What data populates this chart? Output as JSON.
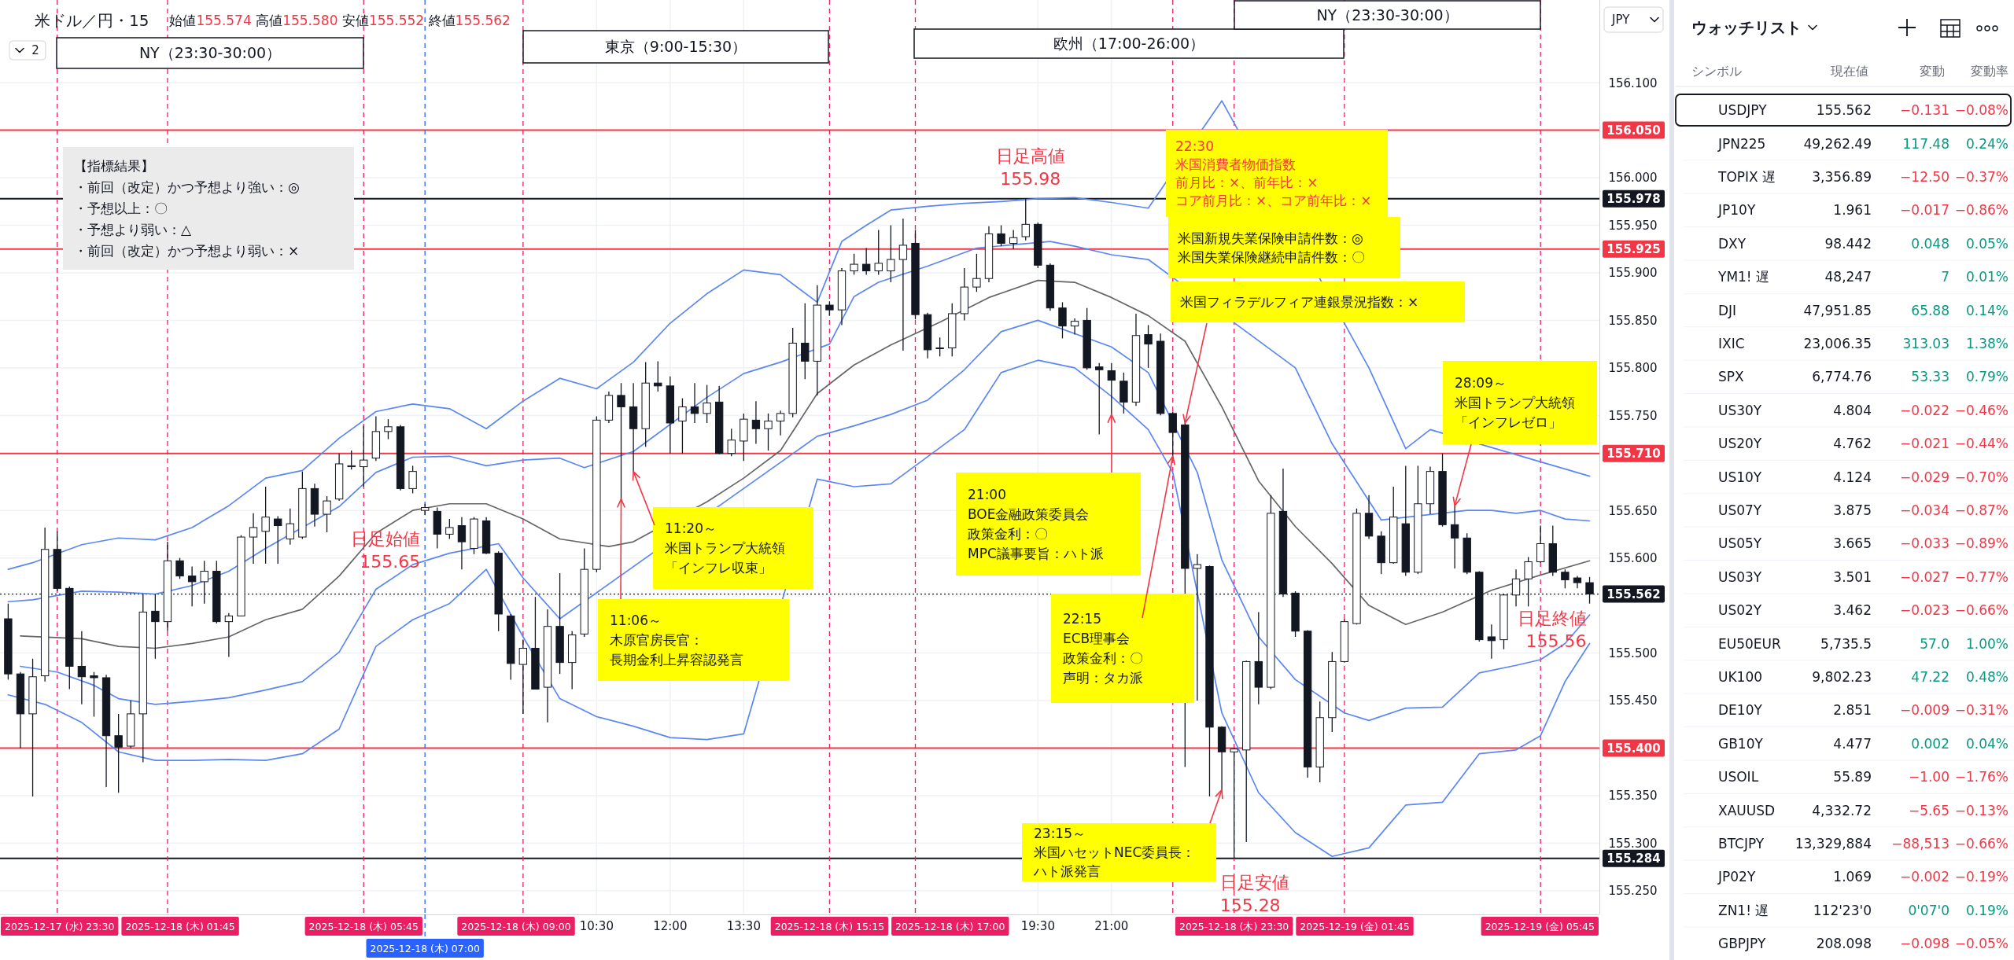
{
  "chart_data": [
    {
      "type": "candlestick",
      "title": "米ドル／円・15",
      "subtitle": "始値155.574 高値155.580 安値155.552 終値155.562",
      "ylabel": "JPY",
      "x": [
        "2025-12-17T22:30",
        "2025-12-17T22:45",
        "2025-12-17T23:00",
        "2025-12-17T23:15",
        "2025-12-17T23:30",
        "2025-12-17T23:45",
        "2025-12-18T00:00",
        "2025-12-18T00:15",
        "2025-12-18T00:30",
        "2025-12-18T00:45",
        "2025-12-18T01:00",
        "2025-12-18T01:15",
        "2025-12-18T01:30",
        "2025-12-18T01:45",
        "2025-12-18T02:00",
        "2025-12-18T02:15",
        "2025-12-18T02:30",
        "2025-12-18T02:45",
        "2025-12-18T03:00",
        "2025-12-18T03:15",
        "2025-12-18T03:30",
        "2025-12-18T03:45",
        "2025-12-18T04:00",
        "2025-12-18T04:15",
        "2025-12-18T04:30",
        "2025-12-18T04:45",
        "2025-12-18T05:00",
        "2025-12-18T05:15",
        "2025-12-18T05:30",
        "2025-12-18T05:45",
        "2025-12-18T06:00",
        "2025-12-18T06:15",
        "2025-12-18T06:30",
        "2025-12-18T06:45",
        "2025-12-18T07:00",
        "2025-12-18T07:15",
        "2025-12-18T07:30",
        "2025-12-18T07:45",
        "2025-12-18T08:00",
        "2025-12-18T08:15",
        "2025-12-18T08:30",
        "2025-12-18T08:45",
        "2025-12-18T09:00",
        "2025-12-18T09:15",
        "2025-12-18T09:30",
        "2025-12-18T09:45",
        "2025-12-18T10:00",
        "2025-12-18T10:15",
        "2025-12-18T10:30",
        "2025-12-18T10:45",
        "2025-12-18T11:00",
        "2025-12-18T11:15",
        "2025-12-18T11:30",
        "2025-12-18T11:45",
        "2025-12-18T12:00",
        "2025-12-18T12:15",
        "2025-12-18T12:30",
        "2025-12-18T12:45",
        "2025-12-18T13:00",
        "2025-12-18T13:15",
        "2025-12-18T13:30",
        "2025-12-18T13:45",
        "2025-12-18T14:00",
        "2025-12-18T14:15",
        "2025-12-18T14:30",
        "2025-12-18T14:45",
        "2025-12-18T15:00",
        "2025-12-18T15:15",
        "2025-12-18T15:30",
        "2025-12-18T15:45",
        "2025-12-18T16:00",
        "2025-12-18T16:15",
        "2025-12-18T16:30",
        "2025-12-18T16:45",
        "2025-12-18T17:00",
        "2025-12-18T17:15",
        "2025-12-18T17:30",
        "2025-12-18T17:45",
        "2025-12-18T18:00",
        "2025-12-18T18:15",
        "2025-12-18T18:30",
        "2025-12-18T18:45",
        "2025-12-18T19:00",
        "2025-12-18T19:15",
        "2025-12-18T19:30",
        "2025-12-18T19:45",
        "2025-12-18T20:00",
        "2025-12-18T20:15",
        "2025-12-18T20:30",
        "2025-12-18T20:45",
        "2025-12-18T21:00",
        "2025-12-18T21:15",
        "2025-12-18T21:30",
        "2025-12-18T21:45",
        "2025-12-18T22:00",
        "2025-12-18T22:15",
        "2025-12-18T22:30",
        "2025-12-18T22:45",
        "2025-12-18T23:00",
        "2025-12-18T23:15",
        "2025-12-18T23:30",
        "2025-12-18T23:45",
        "2025-12-19T00:00",
        "2025-12-19T00:15",
        "2025-12-19T00:30",
        "2025-12-19T00:45",
        "2025-12-19T01:00",
        "2025-12-19T01:15",
        "2025-12-19T01:30",
        "2025-12-19T01:45",
        "2025-12-19T02:00",
        "2025-12-19T02:15",
        "2025-12-19T02:30",
        "2025-12-19T02:45",
        "2025-12-19T03:00",
        "2025-12-19T03:15",
        "2025-12-19T03:30",
        "2025-12-19T03:45",
        "2025-12-19T04:00",
        "2025-12-19T04:15",
        "2025-12-19T04:30",
        "2025-12-19T04:45",
        "2025-12-19T05:00",
        "2025-12-19T05:15",
        "2025-12-19T05:30",
        "2025-12-19T05:45",
        "2025-12-19T06:00",
        "2025-12-19T06:15",
        "2025-12-19T06:30",
        "2025-12-19T06:45"
      ],
      "ohlc": [
        [
          155.536,
          155.552,
          155.472,
          155.478
        ],
        [
          155.478,
          155.48,
          155.4,
          155.436
        ],
        [
          155.436,
          155.494,
          155.349,
          155.475
        ],
        [
          155.476,
          155.632,
          155.47,
          155.609
        ],
        [
          155.609,
          155.628,
          155.565,
          155.568
        ],
        [
          155.568,
          155.57,
          155.462,
          155.486
        ],
        [
          155.486,
          155.523,
          155.446,
          155.475
        ],
        [
          155.476,
          155.48,
          155.433,
          155.474
        ],
        [
          155.474,
          155.477,
          155.359,
          155.413
        ],
        [
          155.413,
          155.436,
          155.353,
          155.401
        ],
        [
          155.402,
          155.45,
          155.4,
          155.436
        ],
        [
          155.436,
          155.562,
          155.385,
          155.543
        ],
        [
          155.544,
          155.562,
          155.494,
          155.533
        ],
        [
          155.533,
          155.617,
          155.523,
          155.597
        ],
        [
          155.597,
          155.6,
          155.578,
          155.581
        ],
        [
          155.581,
          155.591,
          155.549,
          155.575
        ],
        [
          155.575,
          155.597,
          155.552,
          155.586
        ],
        [
          155.586,
          155.597,
          155.531,
          155.533
        ],
        [
          155.533,
          155.542,
          155.496,
          155.539
        ],
        [
          155.539,
          155.624,
          155.539,
          155.622
        ],
        [
          155.622,
          155.647,
          155.594,
          155.632
        ],
        [
          155.628,
          155.675,
          155.594,
          155.643
        ],
        [
          155.641,
          155.644,
          155.594,
          155.634
        ],
        [
          155.62,
          155.652,
          155.614,
          155.636
        ],
        [
          155.622,
          155.691,
          155.62,
          155.673
        ],
        [
          155.673,
          155.678,
          155.633,
          155.646
        ],
        [
          155.646,
          155.665,
          155.627,
          155.66
        ],
        [
          155.662,
          155.71,
          155.66,
          155.699
        ],
        [
          155.696,
          155.713,
          155.693,
          155.697
        ],
        [
          155.696,
          155.739,
          155.675,
          155.703
        ],
        [
          155.705,
          155.749,
          155.702,
          155.733
        ],
        [
          155.733,
          155.746,
          155.725,
          155.738
        ],
        [
          155.738,
          155.74,
          155.671,
          155.673
        ],
        [
          155.673,
          155.697,
          155.668,
          155.691
        ],
        [
          155.65,
          155.657,
          155.645,
          155.653
        ],
        [
          155.649,
          155.653,
          155.61,
          155.625
        ],
        [
          155.625,
          155.641,
          155.62,
          155.632
        ],
        [
          155.634,
          155.643,
          155.588,
          155.617
        ],
        [
          155.61,
          155.643,
          155.604,
          155.641
        ],
        [
          155.639,
          155.643,
          155.604,
          155.605
        ],
        [
          155.605,
          155.607,
          155.523,
          155.541
        ],
        [
          155.539,
          155.541,
          155.472,
          155.489
        ],
        [
          155.488,
          155.514,
          155.436,
          155.505
        ],
        [
          155.505,
          155.559,
          155.462,
          155.462
        ],
        [
          155.464,
          155.546,
          155.427,
          155.528
        ],
        [
          155.528,
          155.584,
          155.478,
          155.49
        ],
        [
          155.49,
          155.523,
          155.462,
          155.519
        ],
        [
          155.52,
          155.61,
          155.517,
          155.588
        ],
        [
          155.588,
          155.749,
          155.585,
          155.745
        ],
        [
          155.745,
          155.775,
          155.742,
          155.771
        ],
        [
          155.771,
          155.784,
          155.662,
          155.759
        ],
        [
          155.759,
          155.784,
          155.691,
          155.736
        ],
        [
          155.736,
          155.806,
          155.717,
          155.784
        ],
        [
          155.784,
          155.807,
          155.775,
          155.781
        ],
        [
          155.781,
          155.791,
          155.71,
          155.742
        ],
        [
          155.744,
          155.768,
          155.71,
          155.759
        ],
        [
          155.759,
          155.784,
          155.742,
          155.752
        ],
        [
          155.752,
          155.782,
          155.742,
          155.763
        ],
        [
          155.764,
          155.781,
          155.709,
          155.71
        ],
        [
          155.71,
          155.736,
          155.707,
          155.724
        ],
        [
          155.723,
          155.752,
          155.702,
          155.746
        ],
        [
          155.745,
          155.765,
          155.72,
          155.736
        ],
        [
          155.736,
          155.752,
          155.713,
          155.744
        ],
        [
          155.744,
          155.755,
          155.729,
          155.752
        ],
        [
          155.752,
          155.842,
          155.748,
          155.826
        ],
        [
          155.826,
          155.868,
          155.788,
          155.807
        ],
        [
          155.807,
          155.887,
          155.771,
          155.866
        ],
        [
          155.866,
          155.87,
          155.855,
          155.861
        ],
        [
          155.861,
          155.905,
          155.845,
          155.902
        ],
        [
          155.902,
          155.92,
          155.898,
          155.909
        ],
        [
          155.909,
          155.926,
          155.898,
          155.902
        ],
        [
          155.902,
          155.945,
          155.898,
          155.91
        ],
        [
          155.902,
          155.95,
          155.89,
          155.914
        ],
        [
          155.914,
          155.957,
          155.818,
          155.929
        ],
        [
          155.931,
          155.945,
          155.851,
          155.856
        ],
        [
          155.856,
          155.858,
          155.81,
          155.819
        ],
        [
          155.821,
          155.832,
          155.812,
          155.821
        ],
        [
          155.821,
          155.868,
          155.812,
          155.857
        ],
        [
          155.857,
          155.905,
          155.85,
          155.885
        ],
        [
          155.885,
          155.92,
          155.88,
          155.894
        ],
        [
          155.894,
          155.949,
          155.89,
          155.941
        ],
        [
          155.941,
          155.95,
          155.928,
          155.931
        ],
        [
          155.931,
          155.945,
          155.925,
          155.937
        ],
        [
          155.938,
          155.978,
          155.934,
          155.951
        ],
        [
          155.951,
          155.953,
          155.905,
          155.908
        ],
        [
          155.908,
          155.91,
          155.86,
          155.863
        ],
        [
          155.863,
          155.869,
          155.831,
          155.844
        ],
        [
          155.844,
          155.852,
          155.835,
          155.849
        ],
        [
          155.85,
          155.863,
          155.798,
          155.8
        ],
        [
          155.801,
          155.805,
          155.73,
          155.798
        ],
        [
          155.797,
          155.805,
          155.751,
          155.787
        ],
        [
          155.786,
          155.795,
          155.752,
          155.764
        ],
        [
          155.764,
          155.857,
          155.76,
          155.834
        ],
        [
          155.835,
          155.845,
          155.8,
          155.825
        ],
        [
          155.828,
          155.836,
          155.75,
          155.752
        ],
        [
          155.752,
          155.754,
          155.707,
          155.732
        ],
        [
          155.74,
          155.742,
          155.38,
          155.589
        ],
        [
          155.589,
          155.604,
          155.45,
          155.593
        ],
        [
          155.591,
          155.592,
          155.349,
          155.422
        ],
        [
          155.422,
          155.423,
          155.356,
          155.396
        ],
        [
          155.396,
          155.4,
          155.284,
          155.399
        ],
        [
          155.398,
          155.492,
          155.301,
          155.491
        ],
        [
          155.491,
          155.543,
          155.446,
          155.464
        ],
        [
          155.464,
          155.666,
          155.462,
          155.647
        ],
        [
          155.649,
          155.694,
          155.559,
          155.562
        ],
        [
          155.563,
          155.565,
          155.517,
          155.523
        ],
        [
          155.523,
          155.524,
          155.369,
          155.38
        ],
        [
          155.38,
          155.449,
          155.364,
          155.432
        ],
        [
          155.432,
          155.501,
          155.417,
          155.491
        ],
        [
          155.491,
          155.536,
          155.49,
          155.533
        ],
        [
          155.531,
          155.652,
          155.53,
          155.647
        ],
        [
          155.647,
          155.666,
          155.62,
          155.623
        ],
        [
          155.623,
          155.628,
          155.583,
          155.595
        ],
        [
          155.595,
          155.675,
          155.594,
          155.643
        ],
        [
          155.636,
          155.697,
          155.581,
          155.585
        ],
        [
          155.585,
          155.697,
          155.583,
          155.657
        ],
        [
          155.657,
          155.696,
          155.646,
          155.691
        ],
        [
          155.691,
          155.71,
          155.633,
          155.635
        ],
        [
          155.635,
          155.655,
          155.589,
          155.621
        ],
        [
          155.621,
          155.626,
          155.583,
          155.585
        ],
        [
          155.585,
          155.586,
          155.512,
          155.514
        ],
        [
          155.517,
          155.53,
          155.494,
          155.513
        ],
        [
          155.514,
          155.562,
          155.504,
          155.561
        ],
        [
          155.561,
          155.588,
          155.549,
          155.578
        ],
        [
          155.578,
          155.601,
          155.549,
          155.596
        ],
        [
          155.596,
          155.634,
          155.595,
          155.615
        ],
        [
          155.615,
          155.634,
          155.581,
          155.585
        ],
        [
          155.585,
          155.588,
          155.568,
          155.577
        ],
        [
          155.579,
          155.581,
          155.568,
          155.574
        ],
        [
          155.574,
          155.58,
          155.552,
          155.562
        ]
      ],
      "series": [
        {
          "type": "line",
          "color": "#5b86f5",
          "x": [
            "2025-12-17T22:30",
            "2025-12-17T23:00",
            "2025-12-18T00:00",
            "2025-12-18T00:45",
            "2025-12-18T01:30",
            "2025-12-18T02:15",
            "2025-12-18T03:00",
            "2025-12-18T03:45",
            "2025-12-18T04:30",
            "2025-12-18T05:15",
            "2025-12-18T06:00",
            "2025-12-18T06:45",
            "2025-12-18T07:30",
            "2025-12-18T08:15",
            "2025-12-18T09:00",
            "2025-12-18T09:45",
            "2025-12-18T10:30",
            "2025-12-18T11:15",
            "2025-12-18T12:00",
            "2025-12-18T12:45",
            "2025-12-18T13:30",
            "2025-12-18T14:15",
            "2025-12-18T15:00",
            "2025-12-18T15:30",
            "2025-12-18T16:00",
            "2025-12-18T16:30",
            "2025-12-18T17:15",
            "2025-12-18T18:00",
            "2025-12-18T18:45",
            "2025-12-18T19:30",
            "2025-12-18T20:15",
            "2025-12-18T21:00",
            "2025-12-18T21:45",
            "2025-12-18T23:15",
            "2025-12-19T02:15",
            "2025-12-19T03:00",
            "2025-12-19T03:30",
            "2025-12-19T06:45"
          ],
          "values": [
            155.588,
            155.595,
            155.614,
            155.621,
            155.619,
            155.632,
            155.655,
            155.684,
            155.692,
            155.726,
            155.754,
            155.762,
            155.757,
            155.736,
            155.765,
            155.789,
            155.778,
            155.806,
            155.847,
            155.878,
            155.903,
            155.898,
            155.869,
            155.933,
            155.95,
            155.966,
            155.97,
            155.973,
            155.975,
            155.978,
            155.979,
            155.974,
            155.968,
            156.081,
            155.8,
            155.715,
            155.735,
            155.686
          ]
        },
        {
          "type": "line",
          "color": "#5b86f5",
          "x": [
            "2025-12-17T22:30",
            "2025-12-17T23:00",
            "2025-12-18T00:00",
            "2025-12-18T00:45",
            "2025-12-18T01:30",
            "2025-12-18T02:15",
            "2025-12-18T03:00",
            "2025-12-18T03:45",
            "2025-12-18T05:15",
            "2025-12-18T06:00",
            "2025-12-18T06:45",
            "2025-12-18T07:30",
            "2025-12-18T08:15",
            "2025-12-18T09:00",
            "2025-12-18T09:45",
            "2025-12-18T10:15",
            "2025-12-18T11:15",
            "2025-12-18T12:45",
            "2025-12-18T13:30",
            "2025-12-18T14:15",
            "2025-12-18T15:15",
            "2025-12-18T15:45",
            "2025-12-18T16:15",
            "2025-12-18T17:15",
            "2025-12-18T18:15",
            "2025-12-18T19:45",
            "2025-12-18T20:15",
            "2025-12-18T21:00",
            "2025-12-18T21:45",
            "2025-12-19T00:45",
            "2025-12-19T01:30",
            "2025-12-19T02:30",
            "2025-12-19T04:15",
            "2025-12-19T04:45",
            "2025-12-19T05:15",
            "2025-12-19T05:45",
            "2025-12-19T06:15",
            "2025-12-19T06:45"
          ],
          "values": [
            155.554,
            155.556,
            155.565,
            155.564,
            155.562,
            155.571,
            155.586,
            155.61,
            155.654,
            155.69,
            155.706,
            155.707,
            155.697,
            155.703,
            155.705,
            155.695,
            155.712,
            155.769,
            155.794,
            155.806,
            155.825,
            155.875,
            155.89,
            155.907,
            155.926,
            155.933,
            155.928,
            155.919,
            155.914,
            155.8,
            155.72,
            155.64,
            155.65,
            155.65,
            155.647,
            155.65,
            155.641,
            155.639
          ]
        },
        {
          "type": "line",
          "color": "#666666",
          "x": [
            "2025-12-17T22:45",
            "2025-12-18T00:00",
            "2025-12-18T00:45",
            "2025-12-18T01:30",
            "2025-12-18T02:15",
            "2025-12-18T03:00",
            "2025-12-18T03:45",
            "2025-12-18T04:30",
            "2025-12-18T05:15",
            "2025-12-18T06:00",
            "2025-12-18T06:45",
            "2025-12-18T07:30",
            "2025-12-18T08:15",
            "2025-12-18T09:00",
            "2025-12-18T09:45",
            "2025-12-18T10:45",
            "2025-12-18T11:15",
            "2025-12-18T12:45",
            "2025-12-18T13:30",
            "2025-12-18T14:15",
            "2025-12-18T15:00",
            "2025-12-18T15:45",
            "2025-12-18T16:30",
            "2025-12-18T17:00",
            "2025-12-18T17:30",
            "2025-12-18T18:30",
            "2025-12-18T19:30",
            "2025-12-18T20:15",
            "2025-12-18T21:00",
            "2025-12-18T21:45",
            "2025-12-18T22:30",
            "2025-12-18T23:15",
            "2025-12-19T00:00",
            "2025-12-19T00:45",
            "2025-12-19T01:30",
            "2025-12-19T02:15",
            "2025-12-19T03:00",
            "2025-12-19T03:45",
            "2025-12-19T04:45",
            "2025-12-19T05:45",
            "2025-12-19T06:45"
          ],
          "values": [
            155.518,
            155.515,
            155.507,
            155.505,
            155.51,
            155.517,
            155.535,
            155.546,
            155.581,
            155.626,
            155.65,
            155.657,
            155.657,
            155.641,
            155.62,
            155.612,
            155.617,
            155.659,
            155.684,
            155.713,
            155.773,
            155.803,
            155.824,
            155.836,
            155.848,
            155.874,
            155.892,
            155.89,
            155.874,
            155.855,
            155.828,
            155.759,
            155.681,
            155.633,
            155.594,
            155.55,
            155.53,
            155.543,
            155.566,
            155.582,
            155.597
          ]
        },
        {
          "type": "line",
          "color": "#5b86f5",
          "x": [
            "2025-12-17T22:45",
            "2025-12-17T23:30",
            "2025-12-18T00:15",
            "2025-12-18T00:45",
            "2025-12-18T01:30",
            "2025-12-18T02:15",
            "2025-12-18T03:00",
            "2025-12-18T03:45",
            "2025-12-18T04:30",
            "2025-12-18T05:15",
            "2025-12-18T06:00",
            "2025-12-18T06:45",
            "2025-12-18T07:30",
            "2025-12-18T08:30",
            "2025-12-18T09:00",
            "2025-12-18T09:45",
            "2025-12-18T15:00",
            "2025-12-18T15:45",
            "2025-12-18T16:30",
            "2025-12-18T17:15",
            "2025-12-18T18:00",
            "2025-12-18T18:45",
            "2025-12-18T19:30",
            "2025-12-18T21:00",
            "2025-12-18T21:45",
            "2025-12-18T22:45",
            "2025-12-18T23:15",
            "2025-12-19T00:00",
            "2025-12-19T00:45",
            "2025-12-19T01:45",
            "2025-12-19T02:15",
            "2025-12-19T03:00",
            "2025-12-19T03:45",
            "2025-12-19T04:30",
            "2025-12-19T05:15",
            "2025-12-19T05:45",
            "2025-12-19T06:15",
            "2025-12-19T06:45"
          ],
          "values": [
            155.486,
            155.48,
            155.466,
            155.452,
            155.446,
            155.449,
            155.453,
            155.461,
            155.47,
            155.501,
            155.567,
            155.593,
            155.605,
            155.615,
            155.579,
            155.536,
            155.728,
            155.739,
            155.751,
            155.766,
            155.798,
            155.838,
            155.85,
            155.822,
            155.795,
            155.69,
            155.598,
            155.517,
            155.472,
            155.437,
            155.429,
            155.442,
            155.443,
            155.479,
            155.487,
            155.493,
            155.51,
            155.54
          ]
        },
        {
          "type": "line",
          "color": "#5b86f5",
          "x": [
            "2025-12-17T22:30",
            "2025-12-17T23:15",
            "2025-12-18T00:00",
            "2025-12-18T00:45",
            "2025-12-18T01:30",
            "2025-12-18T02:15",
            "2025-12-18T03:00",
            "2025-12-18T03:45",
            "2025-12-18T04:30",
            "2025-12-18T05:15",
            "2025-12-18T06:00",
            "2025-12-18T06:45",
            "2025-12-18T07:30",
            "2025-12-18T08:15",
            "2025-12-18T09:00",
            "2025-12-18T09:45",
            "2025-12-18T10:30",
            "2025-12-18T11:15",
            "2025-12-18T12:00",
            "2025-12-18T12:45",
            "2025-12-18T13:30",
            "2025-12-18T15:00",
            "2025-12-18T15:45",
            "2025-12-18T16:30",
            "2025-12-18T18:00",
            "2025-12-18T18:45",
            "2025-12-18T19:30",
            "2025-12-18T20:15",
            "2025-12-18T21:00",
            "2025-12-18T21:45",
            "2025-12-18T22:15",
            "2025-12-18T23:15",
            "2025-12-19T00:00",
            "2025-12-19T00:45",
            "2025-12-19T01:30",
            "2025-12-19T02:15",
            "2025-12-19T03:00",
            "2025-12-19T03:45",
            "2025-12-19T04:30",
            "2025-12-19T05:15",
            "2025-12-19T05:45",
            "2025-12-19T06:15",
            "2025-12-19T06:45"
          ],
          "values": [
            155.456,
            155.446,
            155.427,
            155.396,
            155.387,
            155.387,
            155.388,
            155.387,
            155.394,
            155.42,
            155.507,
            155.535,
            155.552,
            155.588,
            155.517,
            155.452,
            155.433,
            155.423,
            155.411,
            155.409,
            155.415,
            155.683,
            155.675,
            155.678,
            155.735,
            155.795,
            155.808,
            155.8,
            155.77,
            155.735,
            155.69,
            155.437,
            155.353,
            155.311,
            155.286,
            155.295,
            155.34,
            155.343,
            155.394,
            155.398,
            155.413,
            155.47,
            155.51
          ]
        }
      ],
      "xlim": [
        "2025-12-17T22:20",
        "2025-12-19T06:57"
      ],
      "ylim": [
        155.225,
        156.187
      ],
      "xticks": [
        {
          "value": "2025-12-18T10:30",
          "label": "10:30"
        },
        {
          "value": "2025-12-18T12:00",
          "label": "12:00"
        },
        {
          "value": "2025-12-18T13:30",
          "label": "13:30"
        },
        {
          "value": "2025-12-18T19:30",
          "label": "19:30"
        },
        {
          "value": "2025-12-18T21:00",
          "label": "21:00"
        }
      ],
      "yticks": [
        {
          "value": 156.1,
          "label": "156.100"
        },
        {
          "value": 156.0,
          "label": "156.000"
        },
        {
          "value": 155.95,
          "label": "155.950"
        },
        {
          "value": 155.9,
          "label": "155.900"
        },
        {
          "value": 155.85,
          "label": "155.850"
        },
        {
          "value": 155.8,
          "label": "155.800"
        },
        {
          "value": 155.75,
          "label": "155.750"
        },
        {
          "value": 155.65,
          "label": "155.650"
        },
        {
          "value": 155.6,
          "label": "155.600"
        },
        {
          "value": 155.5,
          "label": "155.500"
        },
        {
          "value": 155.45,
          "label": "155.450"
        },
        {
          "value": 155.35,
          "label": "155.350"
        },
        {
          "value": 155.3,
          "label": "155.300"
        },
        {
          "value": 155.25,
          "label": "155.250"
        }
      ],
      "grid": true,
      "ref_lines": [
        {
          "axis": "y",
          "value": 156.05,
          "label": "156.050",
          "color": "#f23645",
          "line_style": "solid"
        },
        {
          "axis": "y",
          "value": 155.978,
          "label": "155.978",
          "color": "#131722",
          "line_style": "solid"
        },
        {
          "axis": "y",
          "value": 155.925,
          "label": "155.925",
          "color": "#f23645",
          "line_style": "solid"
        },
        {
          "axis": "y",
          "value": 155.71,
          "label": "155.710",
          "color": "#f23645",
          "line_style": "solid"
        },
        {
          "axis": "y",
          "value": 155.562,
          "label": "155.562",
          "color": "#131722",
          "line_style": "dotted"
        },
        {
          "axis": "y",
          "value": 155.4,
          "label": "155.400",
          "color": "#f23645",
          "line_style": "solid"
        },
        {
          "axis": "y",
          "value": 155.284,
          "label": "155.284",
          "color": "#131722",
          "line_style": "solid"
        },
        {
          "axis": "x",
          "value": "2025-12-17T23:30",
          "label": "2025-12-17 (水) 23:30",
          "color": "#e91e63",
          "line_style": "dashed"
        },
        {
          "axis": "x",
          "value": "2025-12-18T01:45",
          "label": "2025-12-18 (木) 01:45",
          "color": "#e91e63",
          "line_style": "dashed"
        },
        {
          "axis": "x",
          "value": "2025-12-18T05:45",
          "label": "2025-12-18 (木) 05:45",
          "color": "#e91e63",
          "line_style": "dashed"
        },
        {
          "axis": "x",
          "value": "2025-12-18T07:00",
          "label": "2025-12-18 (木) 07:00",
          "color": "#2962ff",
          "line_style": "dashed"
        },
        {
          "axis": "x",
          "value": "2025-12-18T09:00",
          "label": "2025-12-18 (木) 09:00",
          "color": "#e91e63",
          "line_style": "dashed"
        },
        {
          "axis": "x",
          "value": "2025-12-18T15:15",
          "label": "2025-12-18 (木) 15:15",
          "color": "#e91e63",
          "line_style": "dashed"
        },
        {
          "axis": "x",
          "value": "2025-12-18T17:00",
          "label": "2025-12-18 (木) 17:00",
          "color": "#e91e63",
          "line_style": "dashed"
        },
        {
          "axis": "x",
          "value": "2025-12-18T22:15",
          "label": null,
          "color": "#e91e63",
          "line_style": "dashed"
        },
        {
          "axis": "x",
          "value": "2025-12-18T23:30",
          "label": "2025-12-18 (木) 23:30",
          "color": "#e91e63",
          "line_style": "dashed"
        },
        {
          "axis": "x",
          "value": "2025-12-19T01:45",
          "label": "2025-12-19 (金) 01:45",
          "color": "#e91e63",
          "line_style": "dashed"
        },
        {
          "axis": "x",
          "value": "2025-12-19T05:45",
          "label": "2025-12-19 (金) 05:45",
          "color": "#e91e63",
          "line_style": "dashed"
        }
      ],
      "annotations": [
        "【指標結果】・前回（改定）かつ予想より強い：◎・予想以上：〇・予想より弱い：△・前回（改定）かつ予想より弱い：×",
        {
          "text": "11:06～木原官房長官：長期金利上昇容認発言",
          "x": "2025-12-18T11:00",
          "y": 155.662
        },
        {
          "text": "11:20～米国トランプ大統領「インフレ収束」",
          "x": "2025-12-18T11:15",
          "y": 155.691
        },
        {
          "text": "21:00BOE金融政策委員会政策金利：〇MPC議事要旨：ハト派",
          "x": "2025-12-18T21:00",
          "y": 155.751
        },
        {
          "text": "22:15ECB理事会政策金利：〇声明：タカ派",
          "x": "2025-12-18T22:15",
          "y": 155.707
        },
        "22:30米国消費者物価指数前月比：×、前年比：×コア前月比：×、コア前年比：×",
        "米国新規失業保険申請件数：◎米国失業保険継続申請件数：〇",
        {
          "text": "米国フィラデルフィア連銀景況指数：×",
          "x": "2025-12-18T22:30",
          "y": 155.742
        },
        {
          "text": "23:15～米国ハセットNEC委員長：ハト派発言",
          "x": "2025-12-18T23:15",
          "y": 155.356
        },
        {
          "text": "28:09～米国トランプ大統領「インフレゼロ」",
          "x": "2025-12-19T04:00",
          "y": 155.655
        },
        {
          "text": "日足始値155.65",
          "x": "2025-12-18T07:00",
          "y": 155.65
        },
        {
          "text": "日足高値155.98",
          "x": "2025-12-18T19:15",
          "y": 155.978
        },
        {
          "text": "日足安値155.28",
          "x": "2025-12-18T23:30",
          "y": 155.284
        },
        {
          "text": "日足終値155.56",
          "x": "2025-12-19T06:45",
          "y": 155.562
        },
        "2",
        "NY（23:30-30:00）",
        "東京（9:00-15:30）",
        "欧州（17:00-26:00）",
        "NY（23:30-30:00）"
      ]
    },
    {
      "type": "other",
      "title": "ウォッチリスト",
      "annotations": [
        "シンボル",
        "現在値",
        "変動",
        "変動率",
        "USDJPY",
        "155.562",
        "−0.131",
        "−0.08%",
        "JPN225",
        "49,262.49",
        "117.48",
        "0.24%",
        "TOPIX 遅",
        "3,356.89",
        "−12.50",
        "−0.37%",
        "JP10Y",
        "1.961",
        "−0.017",
        "−0.86%",
        "DXY",
        "98.442",
        "0.048",
        "0.05%",
        "YM1! 遅",
        "48,247",
        "7",
        "0.01%",
        "DJI",
        "47,951.85",
        "65.88",
        "0.14%",
        "IXIC",
        "23,006.35",
        "313.03",
        "1.38%",
        "SPX",
        "6,774.76",
        "53.33",
        "0.79%",
        "US30Y",
        "4.804",
        "−0.022",
        "−0.46%",
        "US20Y",
        "4.762",
        "−0.021",
        "−0.44%",
        "US10Y",
        "4.124",
        "−0.029",
        "−0.70%",
        "US07Y",
        "3.875",
        "−0.034",
        "−0.87%",
        "US05Y",
        "3.665",
        "−0.033",
        "−0.89%",
        "US03Y",
        "3.501",
        "−0.027",
        "−0.77%",
        "US02Y",
        "3.462",
        "−0.023",
        "−0.66%",
        "EU50EUR",
        "5,735.5",
        "57.0",
        "1.00%",
        "UK100",
        "9,802.23",
        "47.22",
        "0.48%",
        "DE10Y",
        "2.851",
        "−0.009",
        "−0.31%",
        "GB10Y",
        "4.477",
        "0.002",
        "0.04%",
        "USOIL",
        "55.89",
        "−1.00",
        "−1.76%",
        "XAUUSD",
        "4,332.72",
        "−5.65",
        "−0.13%",
        "BTCJPY",
        "13,329,884",
        "−88,513",
        "−0.66%",
        "JP02Y",
        "1.069",
        "−0.002",
        "−0.19%",
        "ZN1! 遅",
        "112'23'0",
        "0'07'0",
        "0.19%",
        "GBPJPY",
        "208.098",
        "−0.098",
        "−0.05%"
      ],
      "colors": [
        "#f23645",
        "#089981",
        "#f23645",
        "#f23645",
        "#089981",
        "#089981",
        "#089981",
        "#089981",
        "#089981",
        "#f23645",
        "#f23645",
        "#f23645",
        "#f23645",
        "#f23645",
        "#f23645",
        "#f23645",
        "#089981",
        "#089981",
        "#f23645",
        "#089981",
        "#f23645",
        "#f23645",
        "#f23645",
        "#f23645",
        "#089981",
        "#f23645"
      ]
    }
  ]
}
